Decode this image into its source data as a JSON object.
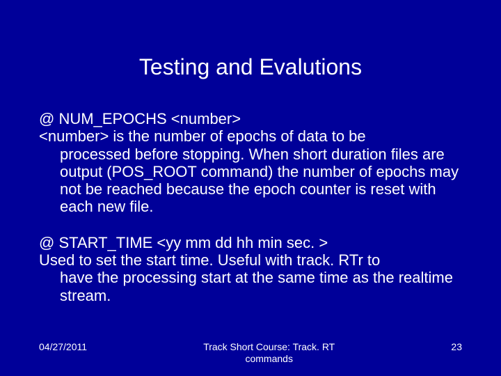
{
  "slide": {
    "background_color": "#000099",
    "text_color": "#ffffff",
    "title": "Testing and Evalutions",
    "title_fontsize": 32,
    "body_fontsize": 22,
    "paragraphs": [
      {
        "first": "@ NUM_EPOCHS <number>",
        "rest_first": "<number> is the number of epochs of data to be",
        "rest_cont": "processed before stopping. When short duration files are output (POS_ROOT command) the number of epochs may not be reached because the epoch counter is reset with each new file."
      },
      {
        "first": "@ START_TIME <yy mm dd hh min sec. >",
        "rest_first": "Used to set the start time.  Useful with track. RTr to",
        "rest_cont": "have the processing start at the same time as the realtime stream."
      }
    ],
    "footer": {
      "date": "04/27/2011",
      "center_line1": "Track Short Course: Track. RT",
      "center_line2": "commands",
      "page": "23"
    },
    "footer_fontsize": 14
  }
}
